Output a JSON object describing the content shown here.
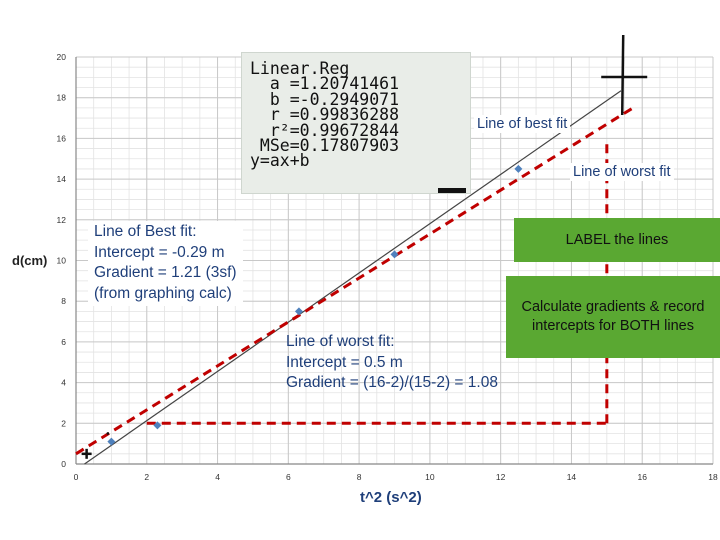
{
  "chart_data": {
    "type": "scatter",
    "xlabel": "t^2 (s^2)",
    "ylabel": "d(cm)",
    "xlim": [
      0,
      18
    ],
    "ylim": [
      0,
      20
    ],
    "x_ticks": [
      0,
      2,
      4,
      6,
      8,
      10,
      12,
      14,
      16,
      18
    ],
    "y_ticks": [
      0,
      2,
      4,
      6,
      8,
      10,
      12,
      14,
      16,
      18,
      20
    ],
    "grid": true,
    "points": [
      {
        "x": 0.3,
        "y": 0.5
      },
      {
        "x": 1.0,
        "y": 1.1
      },
      {
        "x": 2.3,
        "y": 1.9
      },
      {
        "x": 6.3,
        "y": 7.5
      },
      {
        "x": 9.0,
        "y": 10.3
      },
      {
        "x": 12.5,
        "y": 14.5
      }
    ],
    "lines": [
      {
        "label": "Line of best fit",
        "intercept": -0.29,
        "gradient": 1.21
      },
      {
        "label": "Line of worst fit",
        "intercept": 0.5,
        "gradient": 1.08
      }
    ],
    "colors": {
      "points": "#4f81bd",
      "best_fit": "#444444",
      "worst_fit": "#c00000",
      "grid": "#c8c8c8",
      "annotation_box": "#5aa832",
      "annotation_text": "#1f3f7a"
    }
  },
  "calculator": {
    "lines": [
      "Linear.Reg",
      "  a =1.20741461",
      "  b =-0.2949071",
      "  r =0.99836288",
      "  r²=0.99672844",
      " MSe=0.17807903",
      "y=ax+b"
    ]
  },
  "labels": {
    "best_fit_tag": "Line of best fit",
    "worst_fit_tag": "Line of worst fit",
    "best_fit_note": [
      "Line of Best fit:",
      "Intercept = -0.29 m",
      "Gradient = 1.21 (3sf)",
      "(from graphing calc)"
    ],
    "worst_fit_note": [
      "Line of worst fit:",
      "Intercept = 0.5 m",
      "Gradient = (16-2)/(15-2) = 1.08"
    ],
    "label_box": "LABEL the lines",
    "calc_box": "Calculate gradients & record intercepts for BOTH lines"
  }
}
